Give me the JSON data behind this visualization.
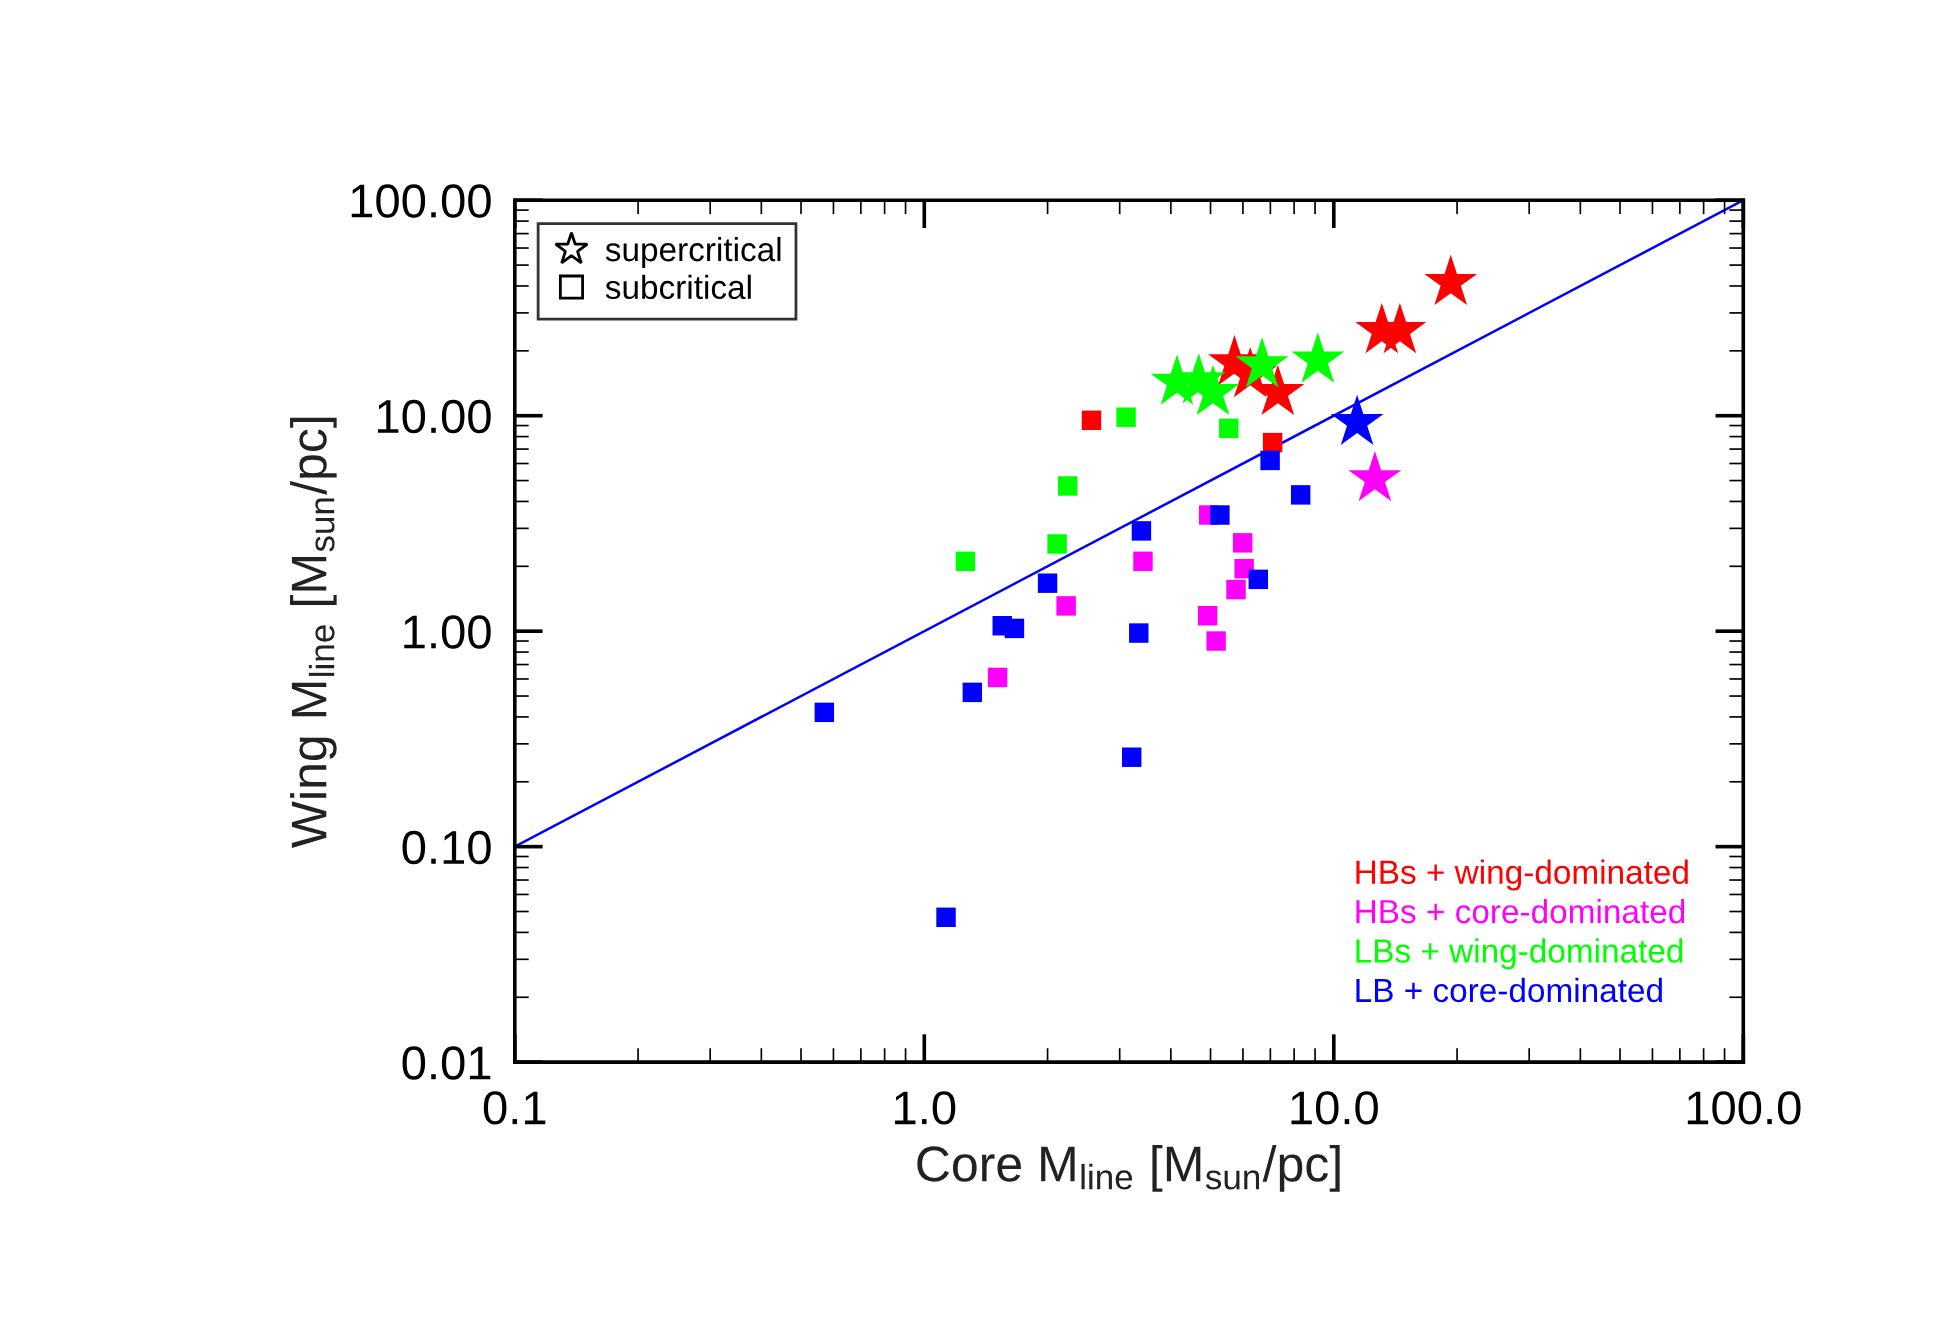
{
  "chart_data": {
    "type": "scatter",
    "xlabel": "Core M$_{line}$ [M$_{sun}$/pc]",
    "ylabel": "Wing M$_{line}$ [M$_{sun}$/pc]",
    "log": "xy",
    "xlim": [
      0.1,
      100
    ],
    "ylim": [
      0.01,
      100
    ],
    "xticks": [
      {
        "value": 0.1,
        "label": "0.1"
      },
      {
        "value": 1,
        "label": "1.0"
      },
      {
        "value": 10,
        "label": "10.0"
      },
      {
        "value": 100,
        "label": "100.0"
      }
    ],
    "yticks": [
      {
        "value": 0.01,
        "label": "0.01"
      },
      {
        "value": 0.1,
        "label": "0.10"
      },
      {
        "value": 1,
        "label": "1.00"
      },
      {
        "value": 10,
        "label": "10.00"
      },
      {
        "value": 100,
        "label": "100.00"
      }
    ],
    "grid": false,
    "legend": "bottom right",
    "annotations": [
      "supercritical",
      "subcritical"
    ],
    "series": [
      {
        "name": "HBs + wing-dominated",
        "color": "#ff0000",
        "marker": "star",
        "x": [
          5.72,
          6.25,
          7.3,
          13.1,
          14.5,
          19.3
        ],
        "values": [
          17.6,
          15.5,
          12.8,
          24.8,
          24.8,
          41.5
        ]
      },
      {
        "name": "HBs + core-dominated",
        "color": "#ff00ff",
        "marker": "star",
        "x": [
          12.6
        ],
        "values": [
          5.1
        ]
      },
      {
        "name": "LBs + wing-dominated",
        "color": "#00ff00",
        "marker": "star",
        "x": [
          4.14,
          4.68,
          5.07,
          6.68,
          9.14
        ],
        "values": [
          14.3,
          14.5,
          12.8,
          17.2,
          18.1
        ]
      },
      {
        "name": "LB + core-dominated",
        "color": "#0000ff",
        "marker": "star",
        "x": [
          11.4
        ],
        "values": [
          9.3
        ]
      },
      {
        "color": "#ff0000",
        "marker": "square",
        "x": [
          2.56,
          7.09
        ],
        "values": [
          9.52,
          7.5
        ]
      },
      {
        "color": "#ff00ff",
        "marker": "square",
        "x": [
          1.51,
          2.22,
          3.42,
          4.95,
          5.99,
          6.04,
          5.77,
          4.92,
          5.16
        ],
        "values": [
          0.61,
          1.31,
          2.11,
          3.46,
          2.57,
          1.95,
          1.56,
          1.18,
          0.9
        ]
      },
      {
        "color": "#00ff00",
        "marker": "square",
        "x": [
          1.26,
          2.11,
          2.24,
          3.11,
          5.54
        ],
        "values": [
          2.11,
          2.54,
          4.72,
          9.84,
          8.74
        ]
      },
      {
        "color": "#0000ff",
        "marker": "square",
        "x": [
          0.57,
          1.31,
          1.13,
          1.55,
          1.66,
          2.0,
          3.21,
          3.34,
          3.39,
          5.27,
          6.54,
          6.99,
          8.3
        ],
        "values": [
          0.42,
          0.52,
          0.047,
          1.06,
          1.03,
          1.67,
          0.26,
          0.98,
          2.92,
          3.46,
          1.74,
          6.2,
          4.29
        ]
      },
      {
        "type": "line",
        "color": "#0000ff",
        "marker": "none",
        "x": [
          0.1,
          100
        ],
        "values": [
          0.1,
          100
        ]
      }
    ]
  }
}
